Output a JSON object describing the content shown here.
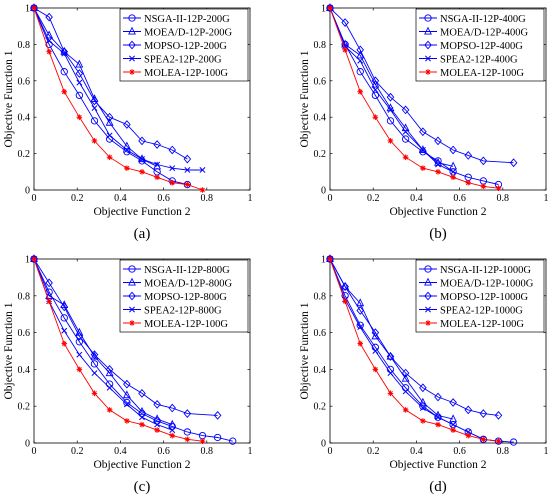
{
  "chart_data": [
    {
      "type": "line",
      "panel_label": "(a)",
      "xlabel": "Objective Function 2",
      "ylabel": "Objective Function 1",
      "xlim": [
        0,
        1
      ],
      "ylim": [
        0,
        1
      ],
      "xticks": [
        "0",
        "0.2",
        "0.4",
        "0.6",
        "0.8",
        "1"
      ],
      "yticks": [
        "0",
        "0.2",
        "0.4",
        "0.6",
        "0.8",
        "1"
      ],
      "grid": false,
      "legend_position": "top-right",
      "series": [
        {
          "name": "NSGA-II-12P-200G",
          "color": "#0000ff",
          "marker": "circle",
          "x": [
            0,
            0.07,
            0.14,
            0.21,
            0.28,
            0.35,
            0.43,
            0.5,
            0.57,
            0.64,
            0.71
          ],
          "y": [
            1,
            0.8,
            0.65,
            0.52,
            0.38,
            0.28,
            0.21,
            0.16,
            0.1,
            0.05,
            0.03
          ]
        },
        {
          "name": "MOEA/D-12P-200G",
          "color": "#0000ff",
          "marker": "triangle",
          "x": [
            0,
            0.07,
            0.14,
            0.21,
            0.28,
            0.35,
            0.43,
            0.5,
            0.57
          ],
          "y": [
            1,
            0.85,
            0.76,
            0.69,
            0.5,
            0.37,
            0.24,
            0.17,
            0.13
          ]
        },
        {
          "name": "MOPSO-12P-200G",
          "color": "#0000ff",
          "marker": "diamond",
          "x": [
            0,
            0.07,
            0.14,
            0.21,
            0.28,
            0.35,
            0.43,
            0.5,
            0.57,
            0.64,
            0.71
          ],
          "y": [
            1,
            0.95,
            0.76,
            0.64,
            0.49,
            0.4,
            0.36,
            0.27,
            0.25,
            0.22,
            0.17
          ]
        },
        {
          "name": "SPEA2-12P-200G",
          "color": "#0000ff",
          "marker": "x",
          "x": [
            0,
            0.07,
            0.14,
            0.21,
            0.28,
            0.35,
            0.43,
            0.5,
            0.57,
            0.64,
            0.71,
            0.78
          ],
          "y": [
            1,
            0.82,
            0.75,
            0.59,
            0.45,
            0.3,
            0.22,
            0.17,
            0.14,
            0.12,
            0.11,
            0.11
          ]
        },
        {
          "name": "MOLEA-12P-100G",
          "color": "#ff0000",
          "marker": "star",
          "x": [
            0,
            0.07,
            0.14,
            0.21,
            0.28,
            0.35,
            0.43,
            0.5,
            0.57,
            0.64,
            0.71,
            0.78
          ],
          "y": [
            1,
            0.76,
            0.54,
            0.4,
            0.27,
            0.18,
            0.12,
            0.1,
            0.07,
            0.04,
            0.03,
            0.0
          ]
        }
      ]
    },
    {
      "type": "line",
      "panel_label": "(b)",
      "xlabel": "Objective Function 2",
      "ylabel": "Objective Function 1",
      "xlim": [
        0,
        1
      ],
      "ylim": [
        0,
        1
      ],
      "xticks": [
        "0",
        "0.2",
        "0.4",
        "0.6",
        "0.8",
        "1"
      ],
      "yticks": [
        "0",
        "0.2",
        "0.4",
        "0.6",
        "0.8",
        "1"
      ],
      "grid": false,
      "legend_position": "top-right",
      "series": [
        {
          "name": "NSGA-II-12P-400G",
          "color": "#0000ff",
          "marker": "circle",
          "x": [
            0,
            0.07,
            0.14,
            0.21,
            0.28,
            0.35,
            0.43,
            0.5,
            0.57,
            0.64,
            0.71,
            0.78
          ],
          "y": [
            1,
            0.8,
            0.65,
            0.52,
            0.38,
            0.28,
            0.21,
            0.16,
            0.1,
            0.07,
            0.05,
            0.03
          ]
        },
        {
          "name": "MOEA/D-12P-400G",
          "color": "#0000ff",
          "marker": "triangle",
          "x": [
            0,
            0.07,
            0.14,
            0.21,
            0.28,
            0.35,
            0.43,
            0.5,
            0.57
          ],
          "y": [
            1,
            0.8,
            0.74,
            0.58,
            0.45,
            0.34,
            0.22,
            0.15,
            0.13
          ]
        },
        {
          "name": "MOPSO-12P-400G",
          "color": "#0000ff",
          "marker": "diamond",
          "x": [
            0,
            0.07,
            0.14,
            0.21,
            0.28,
            0.35,
            0.43,
            0.5,
            0.57,
            0.64,
            0.71,
            0.85
          ],
          "y": [
            1,
            0.92,
            0.77,
            0.6,
            0.51,
            0.44,
            0.32,
            0.27,
            0.22,
            0.19,
            0.16,
            0.15
          ]
        },
        {
          "name": "SPEA2-12P-400G",
          "color": "#0000ff",
          "marker": "x",
          "x": [
            0,
            0.07,
            0.14,
            0.21,
            0.28,
            0.35,
            0.43,
            0.5,
            0.57
          ],
          "y": [
            1,
            0.79,
            0.71,
            0.55,
            0.44,
            0.32,
            0.22,
            0.14,
            0.1
          ]
        },
        {
          "name": "MOLEA-12P-100G",
          "color": "#ff0000",
          "marker": "star",
          "x": [
            0,
            0.07,
            0.14,
            0.21,
            0.28,
            0.35,
            0.43,
            0.5,
            0.57,
            0.64,
            0.71,
            0.78
          ],
          "y": [
            1,
            0.77,
            0.54,
            0.4,
            0.27,
            0.18,
            0.12,
            0.1,
            0.07,
            0.04,
            0.02,
            0.01
          ]
        }
      ]
    },
    {
      "type": "line",
      "panel_label": "(c)",
      "xlabel": "Objective Function 2",
      "ylabel": "Objective Function 1",
      "xlim": [
        0,
        1
      ],
      "ylim": [
        0,
        1
      ],
      "xticks": [
        "0",
        "0.2",
        "0.4",
        "0.6",
        "0.8",
        "1"
      ],
      "yticks": [
        "0",
        "0.2",
        "0.4",
        "0.6",
        "0.8",
        "1"
      ],
      "grid": false,
      "legend_position": "top-right",
      "series": [
        {
          "name": "NSGA-II-12P-800G",
          "color": "#0000ff",
          "marker": "circle",
          "x": [
            0,
            0.07,
            0.14,
            0.21,
            0.28,
            0.35,
            0.43,
            0.5,
            0.57,
            0.64,
            0.71,
            0.78,
            0.85,
            0.92
          ],
          "y": [
            1,
            0.82,
            0.68,
            0.55,
            0.43,
            0.32,
            0.22,
            0.16,
            0.12,
            0.09,
            0.06,
            0.04,
            0.03,
            0.01
          ]
        },
        {
          "name": "MOEA/D-12P-800G",
          "color": "#0000ff",
          "marker": "triangle",
          "x": [
            0,
            0.07,
            0.14,
            0.21,
            0.28,
            0.35,
            0.43,
            0.5,
            0.57,
            0.64
          ],
          "y": [
            1,
            0.8,
            0.75,
            0.6,
            0.47,
            0.38,
            0.26,
            0.17,
            0.13,
            0.1
          ]
        },
        {
          "name": "MOPSO-12P-800G",
          "color": "#0000ff",
          "marker": "diamond",
          "x": [
            0,
            0.07,
            0.14,
            0.21,
            0.28,
            0.35,
            0.43,
            0.5,
            0.57,
            0.64,
            0.71,
            0.85
          ],
          "y": [
            1,
            0.87,
            0.74,
            0.58,
            0.48,
            0.4,
            0.32,
            0.27,
            0.21,
            0.19,
            0.16,
            0.15
          ]
        },
        {
          "name": "SPEA2-12P-800G",
          "color": "#0000ff",
          "marker": "x",
          "x": [
            0,
            0.07,
            0.14,
            0.21,
            0.28,
            0.35,
            0.43,
            0.5,
            0.57,
            0.64
          ],
          "y": [
            1,
            0.77,
            0.61,
            0.48,
            0.38,
            0.3,
            0.21,
            0.14,
            0.1,
            0.07
          ]
        },
        {
          "name": "MOLEA-12P-100G",
          "color": "#ff0000",
          "marker": "star",
          "x": [
            0,
            0.07,
            0.14,
            0.21,
            0.28,
            0.35,
            0.43,
            0.5,
            0.57,
            0.64,
            0.71,
            0.78
          ],
          "y": [
            1,
            0.77,
            0.54,
            0.4,
            0.27,
            0.18,
            0.12,
            0.1,
            0.07,
            0.04,
            0.02,
            0.01
          ]
        }
      ]
    },
    {
      "type": "line",
      "panel_label": "(d)",
      "xlabel": "Objective Function 2",
      "ylabel": "Objective Function 1",
      "xlim": [
        0,
        1
      ],
      "ylim": [
        0,
        1
      ],
      "xticks": [
        "0",
        "0.2",
        "0.4",
        "0.6",
        "0.8",
        "1"
      ],
      "yticks": [
        "0",
        "0.2",
        "0.4",
        "0.6",
        "0.8",
        "1"
      ],
      "grid": false,
      "legend_position": "top-right",
      "series": [
        {
          "name": "NSGA-II-12P-1000G",
          "color": "#0000ff",
          "marker": "circle",
          "x": [
            0,
            0.07,
            0.14,
            0.21,
            0.28,
            0.35,
            0.43,
            0.5,
            0.57,
            0.64,
            0.71,
            0.78,
            0.85
          ],
          "y": [
            1,
            0.8,
            0.64,
            0.52,
            0.4,
            0.3,
            0.2,
            0.14,
            0.1,
            0.06,
            0.02,
            0.01,
            0.005
          ]
        },
        {
          "name": "MOEA/D-12P-1000G",
          "color": "#0000ff",
          "marker": "triangle",
          "x": [
            0,
            0.07,
            0.14,
            0.21,
            0.28,
            0.35,
            0.43,
            0.5,
            0.57
          ],
          "y": [
            1,
            0.85,
            0.76,
            0.58,
            0.47,
            0.35,
            0.22,
            0.15,
            0.13
          ]
        },
        {
          "name": "MOPSO-12P-1000G",
          "color": "#0000ff",
          "marker": "diamond",
          "x": [
            0,
            0.07,
            0.14,
            0.21,
            0.28,
            0.35,
            0.43,
            0.5,
            0.57,
            0.64,
            0.71,
            0.78
          ],
          "y": [
            1,
            0.85,
            0.72,
            0.6,
            0.47,
            0.38,
            0.3,
            0.25,
            0.22,
            0.18,
            0.16,
            0.15
          ]
        },
        {
          "name": "SPEA2-12P-1000G",
          "color": "#0000ff",
          "marker": "x",
          "x": [
            0,
            0.07,
            0.14,
            0.21,
            0.28,
            0.35,
            0.43,
            0.5,
            0.57,
            0.64,
            0.71,
            0.78
          ],
          "y": [
            1,
            0.78,
            0.63,
            0.5,
            0.38,
            0.28,
            0.19,
            0.14,
            0.1,
            0.06,
            0.02,
            0.01
          ]
        },
        {
          "name": "MOLEA-12P-100G",
          "color": "#ff0000",
          "marker": "star",
          "x": [
            0,
            0.07,
            0.14,
            0.21,
            0.28,
            0.35,
            0.43,
            0.5,
            0.57,
            0.64,
            0.71,
            0.78
          ],
          "y": [
            1,
            0.77,
            0.54,
            0.4,
            0.27,
            0.18,
            0.12,
            0.1,
            0.07,
            0.04,
            0.02,
            0.01
          ]
        }
      ]
    }
  ]
}
